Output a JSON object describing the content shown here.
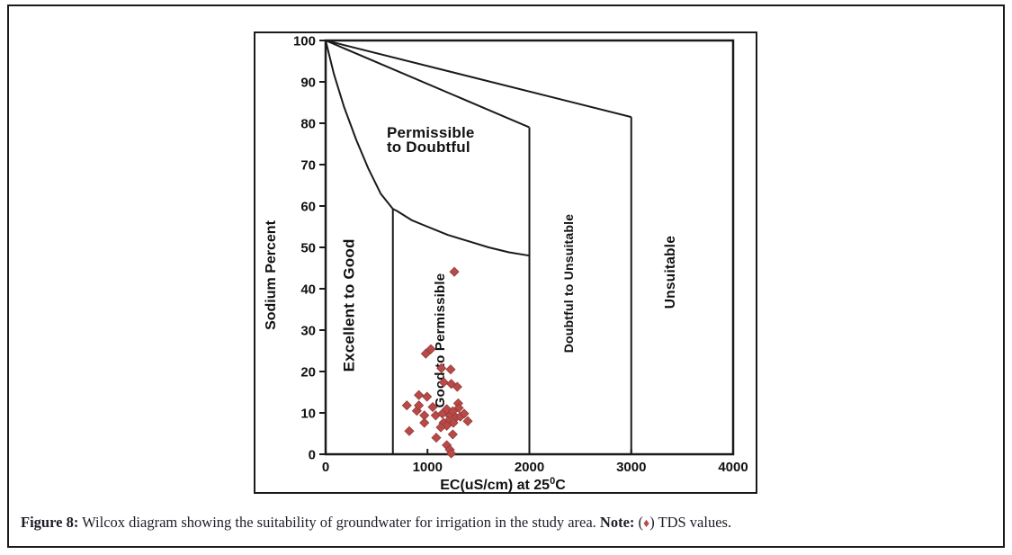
{
  "caption": {
    "prefix": "Figure 8:",
    "body": " Wilcox diagram showing the suitability of groundwater for irrigation in the study area. ",
    "note_label": "Note:",
    "note_open": " (",
    "diamond": "♦",
    "note_close": ") TDS values."
  },
  "chart_data": {
    "type": "scatter",
    "title": "",
    "series_name": "TDS values",
    "xlabel_pre": "EC(uS/cm) at 25",
    "xlabel_sup": "0",
    "xlabel_post": "C",
    "ylabel": "Sodium Percent",
    "xlim": [
      0,
      4000
    ],
    "ylim": [
      0,
      100
    ],
    "x_ticks": [
      0,
      1000,
      2000,
      3000,
      4000
    ],
    "y_ticks": [
      0,
      10,
      20,
      30,
      40,
      50,
      60,
      70,
      80,
      90,
      100
    ],
    "grid": false,
    "legend_position": "none",
    "line_color": "#1a1a1a",
    "marker": "diamond",
    "marker_color": "#b94a48",
    "marker_edge": "#943b38",
    "zones": [
      {
        "label": "Excellent to Good",
        "ec": 280,
        "na": 36,
        "rotate": true,
        "size": 17
      },
      {
        "label": "Good to Permissible",
        "ec": 1166,
        "na": 27.5,
        "rotate": true,
        "size": 15
      },
      {
        "label": "Permissible",
        "ec": 600,
        "na": 76.5,
        "rotate": false,
        "size": 17,
        "anchor": "start"
      },
      {
        "label": "to Doubtful",
        "ec": 600,
        "na": 73.0,
        "rotate": false,
        "size": 17,
        "anchor": "start"
      },
      {
        "label": "Doubtful to Unsuitable",
        "ec": 2428,
        "na": 41.3,
        "rotate": true,
        "size": 14
      },
      {
        "label": "Unsuitable",
        "ec": 3426,
        "na": 44,
        "rotate": true,
        "size": 15.5
      }
    ],
    "boundaries": {
      "curve": [
        [
          0,
          100
        ],
        [
          80,
          92
        ],
        [
          180,
          84
        ],
        [
          300,
          76
        ],
        [
          420,
          69
        ],
        [
          540,
          63
        ],
        [
          660,
          59.3
        ],
        [
          700,
          58.8
        ],
        [
          850,
          56.5
        ],
        [
          1000,
          55
        ],
        [
          1200,
          53
        ],
        [
          1400,
          51.5
        ],
        [
          1600,
          50
        ],
        [
          1800,
          48.8
        ],
        [
          2000,
          48
        ]
      ],
      "rays": [
        [
          [
            0,
            100
          ],
          [
            2000,
            79
          ]
        ],
        [
          [
            0,
            100
          ],
          [
            3000,
            81.5
          ]
        ]
      ],
      "verticals": [
        [
          660,
          0,
          59.3
        ],
        [
          2000,
          0,
          79
        ],
        [
          3000,
          0,
          81.5
        ]
      ]
    },
    "points": [
      [
        1263,
        44.1
      ],
      [
        983,
        24.3
      ],
      [
        1033,
        25.4
      ],
      [
        1136,
        20.8
      ],
      [
        1227,
        20.5
      ],
      [
        1159,
        17.4
      ],
      [
        1233,
        17.0
      ],
      [
        1292,
        16.3
      ],
      [
        1301,
        12.3
      ],
      [
        915,
        14.3
      ],
      [
        995,
        13.9
      ],
      [
        797,
        11.8
      ],
      [
        895,
        10.5
      ],
      [
        915,
        11.8
      ],
      [
        969,
        9.4
      ],
      [
        1051,
        11.4
      ],
      [
        1080,
        9.4
      ],
      [
        1145,
        9.8
      ],
      [
        1189,
        10.9
      ],
      [
        1219,
        9.3
      ],
      [
        1248,
        10.4
      ],
      [
        1278,
        8.9
      ],
      [
        1307,
        11.2
      ],
      [
        1322,
        9.1
      ],
      [
        1201,
        8.0
      ],
      [
        1254,
        7.6
      ],
      [
        1157,
        7.6
      ],
      [
        1360,
        9.8
      ],
      [
        1395,
        8.0
      ],
      [
        1189,
        6.9
      ],
      [
        1130,
        6.5
      ],
      [
        821,
        5.6
      ],
      [
        969,
        7.6
      ],
      [
        1086,
        4.0
      ],
      [
        1248,
        4.8
      ],
      [
        1189,
        2.2
      ],
      [
        1219,
        1.1
      ],
      [
        1233,
        0.2
      ]
    ]
  }
}
